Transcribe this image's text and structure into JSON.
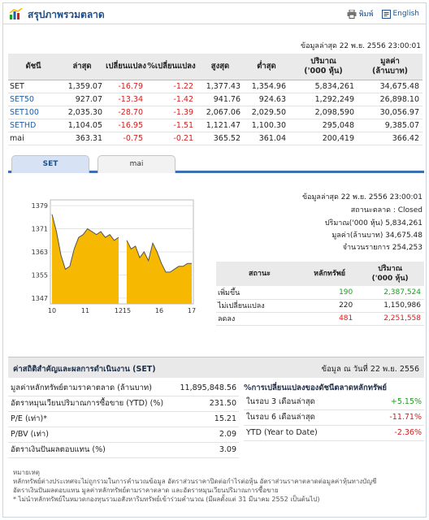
{
  "header": {
    "title": "สรุปภาพรวมตลาด",
    "print_label": "พิมพ์",
    "lang_label": "English"
  },
  "as_of": "ข้อมูลล่าสุด 22 พ.ย. 2556 23:00:01",
  "index_table": {
    "headers": [
      "ดัชนี",
      "ล่าสุด",
      "เปลี่ยนแปลง",
      "%เปลี่ยนแปลง",
      "สูงสุด",
      "ต่ำสุด",
      "ปริมาณ\n('000 หุ้น)",
      "มูลค่า\n(ล้านบาท)"
    ],
    "rows": [
      {
        "name": "SET",
        "last": "1,359.07",
        "chg": "-16.79",
        "pct": "-1.22",
        "high": "1,377.43",
        "low": "1,354.96",
        "vol": "5,834,261",
        "val": "34,675.48"
      },
      {
        "name": "SET50",
        "last": "927.07",
        "chg": "-13.34",
        "pct": "-1.42",
        "high": "941.76",
        "low": "924.63",
        "vol": "1,292,249",
        "val": "26,898.10"
      },
      {
        "name": "SET100",
        "last": "2,035.30",
        "chg": "-28.70",
        "pct": "-1.39",
        "high": "2,067.06",
        "low": "2,029.50",
        "vol": "2,098,590",
        "val": "30,056.97"
      },
      {
        "name": "SETHD",
        "last": "1,104.05",
        "chg": "-16.95",
        "pct": "-1.51",
        "high": "1,121.47",
        "low": "1,100.30",
        "vol": "295,048",
        "val": "9,385.07"
      },
      {
        "name": "mai",
        "last": "363.31",
        "chg": "-0.75",
        "pct": "-0.21",
        "high": "365.52",
        "low": "361.04",
        "vol": "200,419",
        "val": "366.42"
      }
    ]
  },
  "tabs": [
    {
      "label": "SET"
    },
    {
      "label": "mai"
    }
  ],
  "chart_data": {
    "type": "area",
    "x_ticks": [
      "10",
      "11",
      "12",
      "15",
      "16",
      "17"
    ],
    "y_ticks": [
      1347,
      1355,
      1363,
      1371,
      1379
    ],
    "ylim": [
      1345,
      1381
    ],
    "series": [
      {
        "values": [
          1376,
          1370,
          1362,
          1357,
          1358,
          1364,
          1368,
          1369,
          1371,
          1370,
          1369,
          1370,
          1368,
          1369,
          1367,
          1368
        ],
        "color": "#f6b800"
      },
      {
        "values": [
          1367,
          1364,
          1365,
          1361,
          1363,
          1360,
          1366,
          1363,
          1359,
          1356,
          1356,
          1357,
          1358,
          1358,
          1359,
          1359
        ],
        "color": "#f6b800"
      }
    ]
  },
  "market_info": {
    "as_of": "ข้อมูลล่าสุด 22 พ.ย. 2556 23:00:01",
    "status": "สถานะตลาด : Closed",
    "volume": "ปริมาณ('000 หุ้น) 5,834,261",
    "value": "มูลค่า(ล้านบาท) 34,675.48",
    "trades": "จำนวนรายการ 254,253"
  },
  "status_table": {
    "headers": [
      "สถานะ",
      "หลักทรัพย์",
      "ปริมาณ\n('000 หุ้น)"
    ],
    "rows": [
      {
        "label": "เพิ่มขึ้น",
        "count": "190",
        "vol": "2,387,524",
        "cls": "pos"
      },
      {
        "label": "ไม่เปลี่ยนแปลง",
        "count": "220",
        "vol": "1,150,986",
        "cls": ""
      },
      {
        "label": "ลดลง",
        "count": "481",
        "vol": "2,251,558",
        "cls": "neg"
      }
    ]
  },
  "key_stats": {
    "title": "ค่าสถิติสำคัญและผลการดำเนินงาน (SET)",
    "date": "ข้อมูล ณ วันที่ 22 พ.ย. 2556",
    "rows": [
      {
        "label": "มูลค่าหลักทรัพย์ตามราคาตลาด (ล้านบาท)",
        "value": "11,895,848.56"
      },
      {
        "label": "อัตราหมุนเวียนปริมาณการซื้อขาย (YTD) (%)",
        "value": "231.50"
      },
      {
        "label": "P/E (เท่า)*",
        "value": "15.21"
      },
      {
        "label": "P/BV (เท่า)",
        "value": "2.09"
      },
      {
        "label": "อัตราเงินปันผลตอบแทน (%)",
        "value": "3.09"
      }
    ]
  },
  "change": {
    "title": "%การเปลี่ยนแปลงของดัชนีตลาดหลักทรัพย์",
    "rows": [
      {
        "label": "ในรอบ 3 เดือนล่าสุด",
        "value": "+5.15%",
        "cls": "pos"
      },
      {
        "label": "ในรอบ 6 เดือนล่าสุด",
        "value": "-11.71%",
        "cls": "neg"
      },
      {
        "label": "YTD (Year to Date)",
        "value": "-2.36%",
        "cls": "neg"
      }
    ]
  },
  "notes": {
    "title": "หมายเหตุ",
    "line1": "หลักทรัพย์ต่างประเทศจะไม่ถูกรวมในการคำนวณข้อมูล อัตราส่วนราคาปิดต่อกำไรต่อหุ้น อัตราส่วนราคาตลาดต่อมูลค่าหุ้นทางบัญชี",
    "line2": "อัตราเงินปันผลตอบแทน มูลค่าหลักทรัพย์ตามราคาตลาด และอัตราหมุนเวียนปริมาณการซื้อขาย",
    "line3": "* ไม่นำหลักทรัพย์ในหมวดกองทุนรวมอสังหาริมทรัพย์เข้าร่วมคำนวณ (มีผลตั้งแต่ 31 มีนาคม 2552 เป็นต้นไป)"
  }
}
